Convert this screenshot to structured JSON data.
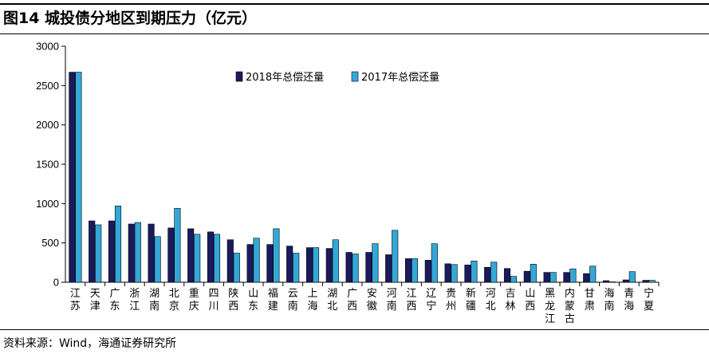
{
  "title": "图14 城投债分地区到期压力（亿元）",
  "source": "资料来源：Wind，海通证券研究所",
  "chart_data": {
    "type": "bar",
    "categories": [
      "江苏",
      "天津",
      "广东",
      "浙江",
      "湖南",
      "北京",
      "重庆",
      "四川",
      "陕西",
      "山东",
      "福建",
      "云南",
      "上海",
      "湖北",
      "广西",
      "安徽",
      "河南",
      "江西",
      "辽宁",
      "贵州",
      "新疆",
      "河北",
      "吉林",
      "山西",
      "黑龙江",
      "内蒙古",
      "甘肃",
      "海南",
      "青海",
      "宁夏"
    ],
    "series": [
      {
        "name": "2018年总偿还量",
        "color": "#1a1a5e",
        "values": [
          2670,
          780,
          780,
          740,
          740,
          690,
          680,
          640,
          540,
          480,
          480,
          460,
          440,
          430,
          380,
          380,
          350,
          300,
          280,
          235,
          220,
          190,
          175,
          140,
          125,
          125,
          110,
          20,
          30,
          25
        ]
      },
      {
        "name": "2017年总偿还量",
        "color": "#33a8d8",
        "values": [
          2670,
          730,
          970,
          760,
          580,
          940,
          610,
          610,
          370,
          560,
          680,
          370,
          440,
          540,
          360,
          490,
          660,
          300,
          490,
          225,
          270,
          255,
          75,
          230,
          125,
          170,
          205,
          5,
          135,
          25
        ]
      }
    ],
    "ylim": [
      0,
      3000
    ],
    "yticks": [
      0,
      500,
      1000,
      1500,
      2000,
      2500,
      3000
    ],
    "legend_position": "top-center",
    "grid": false
  }
}
